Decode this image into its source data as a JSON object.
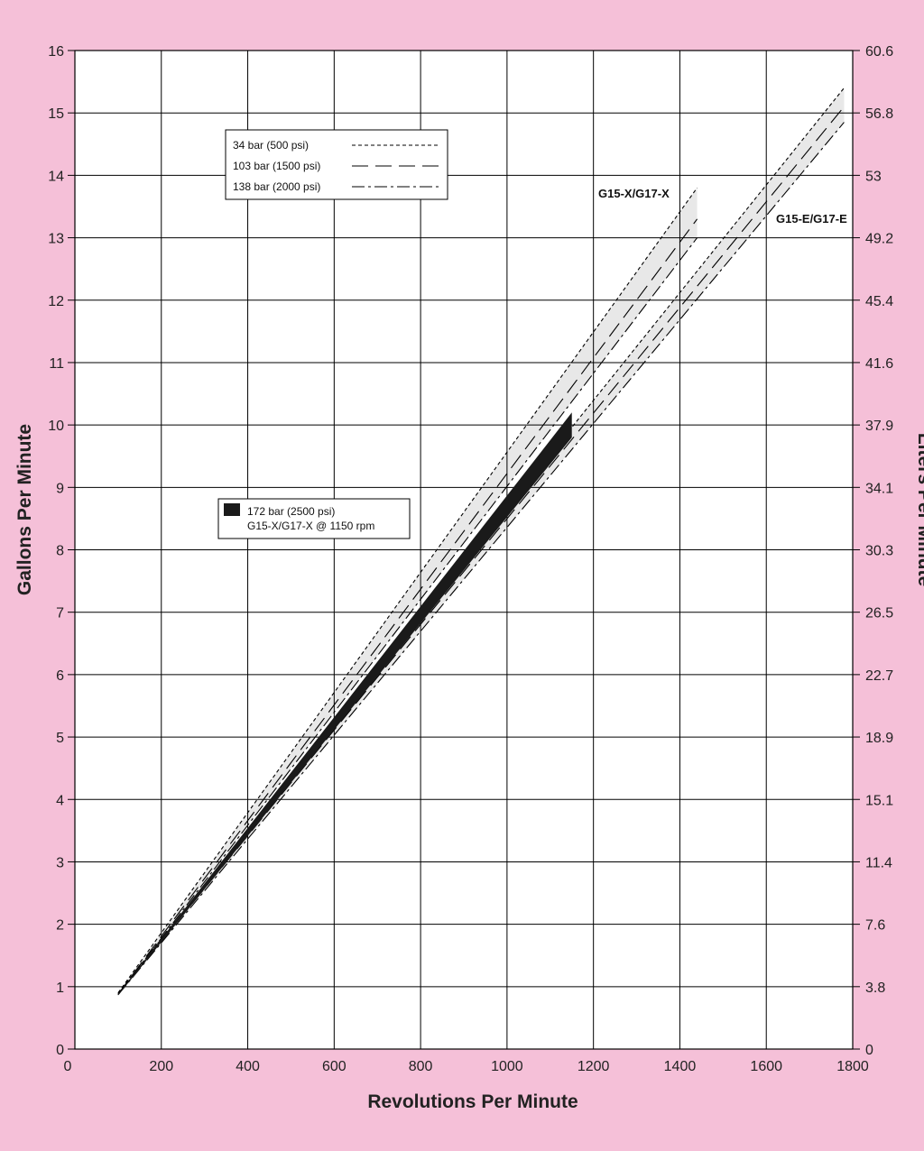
{
  "chart_data": {
    "type": "line",
    "title": "",
    "xlabel": "Revolutions Per Minute",
    "ylabel": "Gallons Per Minute",
    "y2label": "Liters Per Minute",
    "xlim": [
      0,
      1800
    ],
    "ylim": [
      0,
      16
    ],
    "grid": true,
    "x_ticks": [
      "0",
      "200",
      "400",
      "600",
      "800",
      "1000",
      "1200",
      "1400",
      "1600",
      "1800"
    ],
    "y_ticks": [
      "0",
      "1",
      "2",
      "3",
      "4",
      "5",
      "6",
      "7",
      "8",
      "9",
      "10",
      "11",
      "12",
      "13",
      "14",
      "15",
      "16"
    ],
    "y2_ticks": [
      "0",
      "3.8",
      "7.6",
      "11.4",
      "15.1",
      "18.9",
      "22.7",
      "26.5",
      "30.3",
      "34.1",
      "37.9",
      "41.6",
      "45.4",
      "49.2",
      "53",
      "56.8",
      "60.6"
    ],
    "legend_lines": [
      {
        "label": "34 bar (500 psi)",
        "dash": "short"
      },
      {
        "label": "103 bar (1500 psi)",
        "dash": "long"
      },
      {
        "label": "138 bar (2000 psi)",
        "dash": "dash-dot"
      }
    ],
    "legend_band": {
      "line1": "172 bar (2500 psi)",
      "line2": "G15-X/G17-X @ 1150 rpm"
    },
    "pumps": [
      {
        "name": "G15-X/G17-X",
        "series": [
          {
            "pressure": "34 bar (500 psi)",
            "x": [
              100,
              1440
            ],
            "y": [
              0.9,
              13.8
            ]
          },
          {
            "pressure": "103 bar (1500 psi)",
            "x": [
              100,
              1440
            ],
            "y": [
              0.88,
              13.3
            ]
          },
          {
            "pressure": "138 bar (2000 psi)",
            "x": [
              100,
              1440
            ],
            "y": [
              0.87,
              13.0
            ]
          }
        ]
      },
      {
        "name": "G15-E/G17-E",
        "series": [
          {
            "pressure": "34 bar (500 psi)",
            "x": [
              100,
              1780
            ],
            "y": [
              0.9,
              15.4
            ]
          },
          {
            "pressure": "103 bar (1500 psi)",
            "x": [
              100,
              1780
            ],
            "y": [
              0.88,
              15.1
            ]
          },
          {
            "pressure": "138 bar (2000 psi)",
            "x": [
              100,
              1780
            ],
            "y": [
              0.87,
              14.85
            ]
          }
        ]
      }
    ],
    "band_2500psi": {
      "x": [
        100,
        1150
      ],
      "y_upper": [
        0.88,
        10.2
      ],
      "y_lower": [
        0.86,
        9.8
      ]
    },
    "colors": {
      "background": "#f5c0d8",
      "plot_area": "#ffffff",
      "envelope_fill": "#e8e8e8",
      "band_fill": "#1a1a1a",
      "grid": "#000000"
    }
  }
}
